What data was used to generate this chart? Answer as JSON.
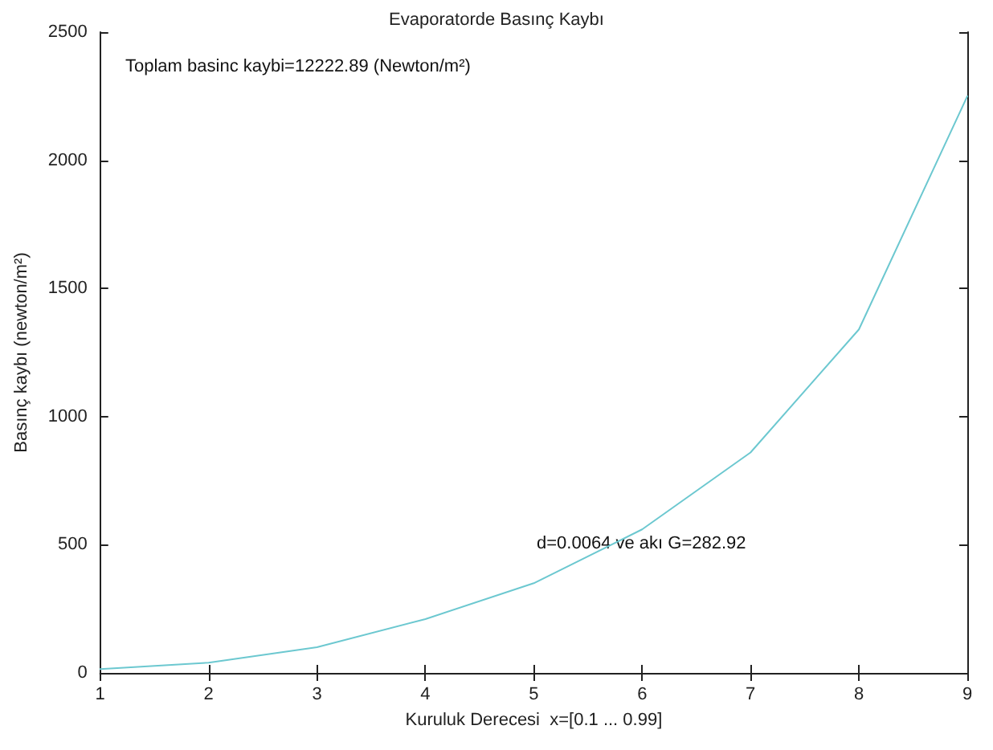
{
  "chart_data": {
    "type": "line",
    "title": "Evaporatorde Basınç Kaybı",
    "xlabel": "Kuruluk Derecesi  x=[0.1 ... 0.99]",
    "ylabel": "Basınç kaybı (newton/m²)",
    "annotations": [
      "Toplam basinc kaybi=12222.89 (Newton/m²)",
      "d=0.0064 ve akı G=282.92"
    ],
    "x": [
      1,
      2,
      3,
      4,
      5,
      6,
      7,
      8,
      9
    ],
    "series": [
      {
        "color": "#6cc8d0",
        "values": [
          15,
          40,
          100,
          210,
          350,
          560,
          860,
          1340,
          2250
        ]
      }
    ],
    "xlim": [
      1,
      9
    ],
    "xticks": [
      1,
      2,
      3,
      4,
      5,
      6,
      7,
      8,
      9
    ],
    "ylim": [
      0,
      2500
    ],
    "yticks": [
      0,
      500,
      1000,
      1500,
      2000,
      2500
    ],
    "marker": "none",
    "line_style": "solid"
  }
}
